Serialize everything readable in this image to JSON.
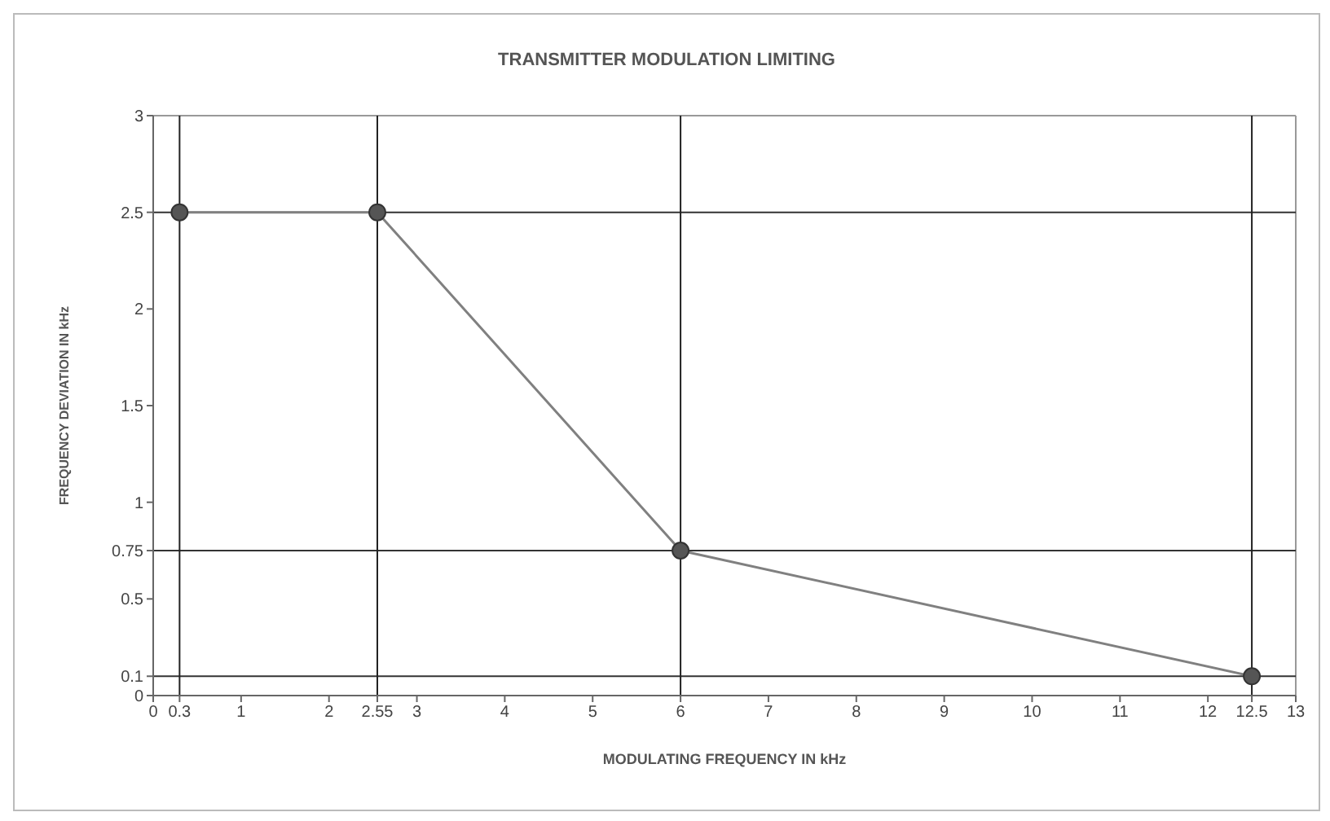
{
  "chart_data": {
    "type": "line",
    "title": "TRANSMITTER MODULATION LIMITING",
    "xlabel": "MODULATING FREQUENCY IN kHz",
    "ylabel": "FREQUENCY DEVIATION IN kHz",
    "x": [
      0.3,
      2.55,
      6,
      12.5
    ],
    "series": [
      {
        "color": "#808080",
        "values": [
          2.5,
          2.5,
          0.75,
          0.1
        ]
      }
    ],
    "xlim": [
      0,
      13
    ],
    "xticks": [
      0,
      0.3,
      1,
      2,
      2.55,
      3,
      4,
      5,
      6,
      7,
      8,
      9,
      10,
      11,
      12,
      12.5,
      13
    ],
    "ylim": [
      0,
      3
    ],
    "yticks": [
      0,
      0.1,
      0.5,
      0.75,
      1,
      1.5,
      2,
      2.5,
      3
    ],
    "ref_lines": [
      {
        "axis": "y",
        "value": 2.5,
        "color": "#333333"
      },
      {
        "axis": "y",
        "value": 0.75,
        "color": "#333333"
      },
      {
        "axis": "y",
        "value": 0.1,
        "color": "#333333"
      },
      {
        "axis": "x",
        "value": 0.3,
        "color": "#222222"
      },
      {
        "axis": "x",
        "value": 2.55,
        "color": "#222222"
      },
      {
        "axis": "x",
        "value": 6,
        "color": "#222222"
      },
      {
        "axis": "x",
        "value": 12.5,
        "color": "#222222"
      }
    ],
    "marker": "circle",
    "grid": false,
    "legend": false
  }
}
